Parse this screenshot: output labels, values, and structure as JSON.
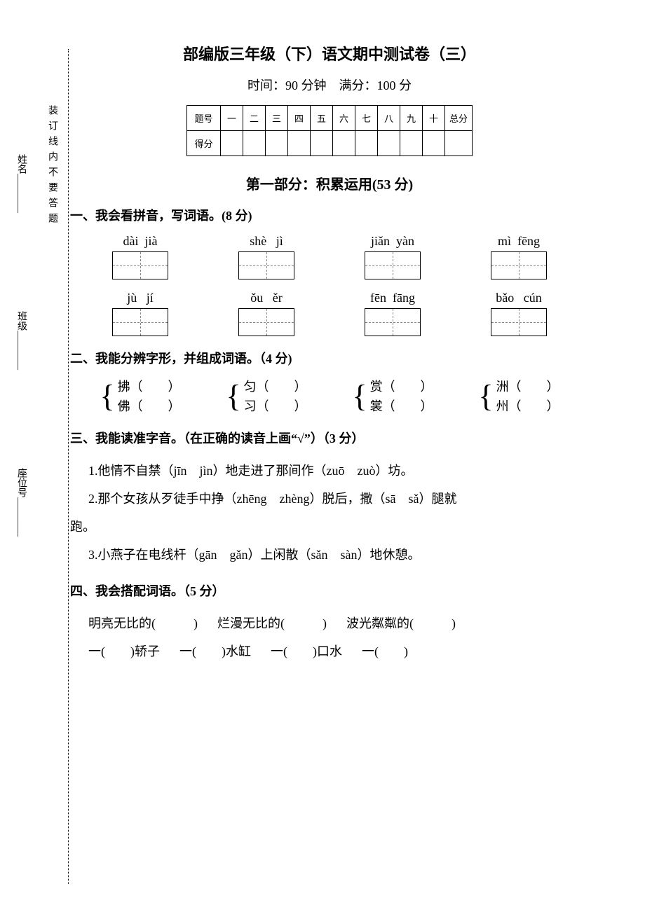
{
  "title": "部编版三年级（下）语文期中测试卷（三）",
  "subtitle": "时间：90 分钟　满分：100 分",
  "score_table": {
    "row_header_1": "题号",
    "row_header_2": "得分",
    "cols": [
      "一",
      "二",
      "三",
      "四",
      "五",
      "六",
      "七",
      "八",
      "九",
      "十",
      "总分"
    ]
  },
  "binding_text": "装订线内不要答题",
  "side_labels": [
    "姓名________",
    "班级________",
    "座位号________"
  ],
  "part1_header": "第一部分：积累运用(53 分)",
  "q1": {
    "heading": "一、我会看拼音，写词语。(8 分)",
    "row1": [
      "dài  jià",
      "shè   jì",
      "jiǎn  yàn",
      "mì  fēng"
    ],
    "row2": [
      "jù   jí",
      "ǒu   ěr",
      "fēn  fāng",
      "bǎo   cún"
    ]
  },
  "q2": {
    "heading": "二、我能分辨字形，并组成词语。（4 分)",
    "pairs": [
      {
        "top": "拂（　　）",
        "bot": "佛（　　）"
      },
      {
        "top": "匀（　　）",
        "bot": "习（　　）"
      },
      {
        "top": "赏（　　）",
        "bot": "裳（　　）"
      },
      {
        "top": "洲（　　）",
        "bot": "州（　　）"
      }
    ]
  },
  "q3": {
    "heading": "三、我能读准字音。（在正确的读音上画“√”）（3 分）",
    "line1": "1.他情不自禁（jīn　jìn）地走进了那间作（zuō　zuò）坊。",
    "line2": "2.那个女孩从歹徒手中挣（zhēng　zhèng）脱后，撒（sā　sǎ）腿就",
    "line2b": "跑。",
    "line3": "3.小燕子在电线杆（gān　gǎn）上闲散（sǎn　sàn）地休憩。"
  },
  "q4": {
    "heading": "四、我会搭配词语。（5 分）",
    "row1": [
      "明亮无比的(　　　)",
      "烂漫无比的(　　　)",
      "波光粼粼的(　　　)"
    ],
    "row2": [
      "一(　　)轿子",
      "一(　　)水缸",
      "一(　　)口水",
      "一(　　)"
    ]
  }
}
